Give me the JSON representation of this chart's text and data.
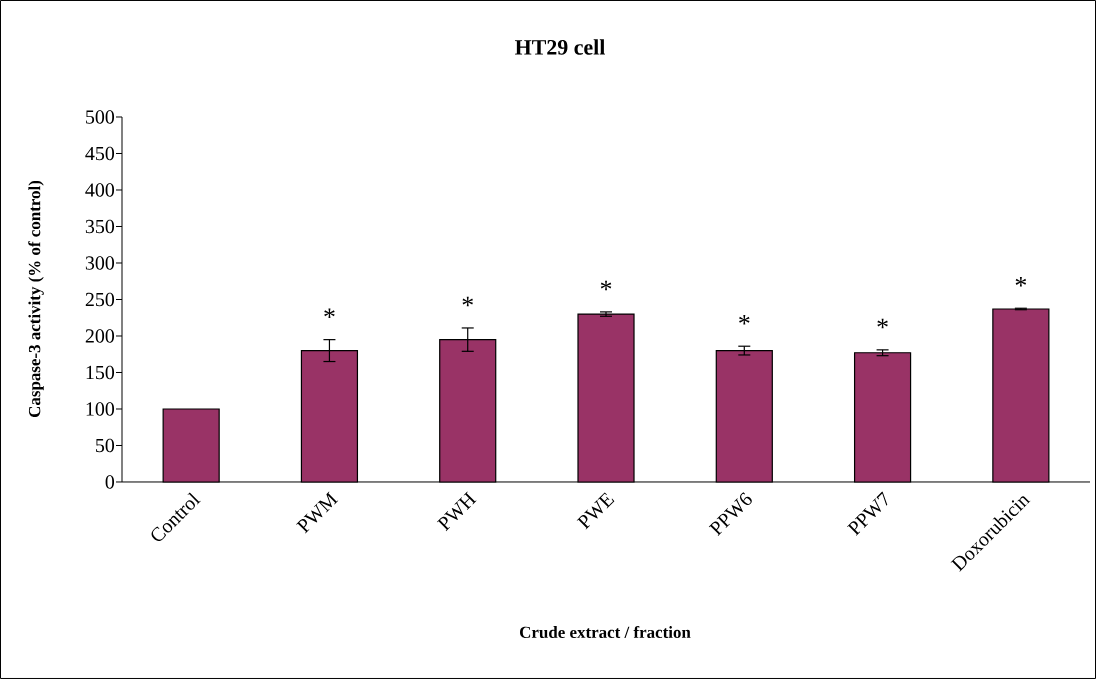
{
  "chart_data": {
    "type": "bar",
    "title": "HT29 cell",
    "xlabel": "Crude extract / fraction",
    "ylabel": "Caspase-3 activity (% of control)",
    "categories": [
      "Control",
      "PWM",
      "PWH",
      "PWE",
      "PPW6",
      "PPW7",
      "Doxorubicin"
    ],
    "values": [
      100,
      180,
      195,
      230,
      180,
      177,
      237
    ],
    "errors": [
      null,
      15,
      16,
      3,
      6,
      4,
      1
    ],
    "color": "#993366",
    "ylim": [
      0,
      500
    ],
    "yticks": [
      0,
      50,
      100,
      150,
      200,
      250,
      300,
      350,
      400,
      450,
      500
    ],
    "grid": false,
    "annotations": [
      {
        "text": "*",
        "x": "PWM",
        "y": 180
      },
      {
        "text": "*",
        "x": "PWH",
        "y": 195
      },
      {
        "text": "*",
        "x": "PWE",
        "y": 230
      },
      {
        "text": "*",
        "x": "PPW6",
        "y": 180
      },
      {
        "text": "*",
        "x": "PPW7",
        "y": 177
      },
      {
        "text": "*",
        "x": "Doxorubicin",
        "y": 237
      }
    ]
  }
}
